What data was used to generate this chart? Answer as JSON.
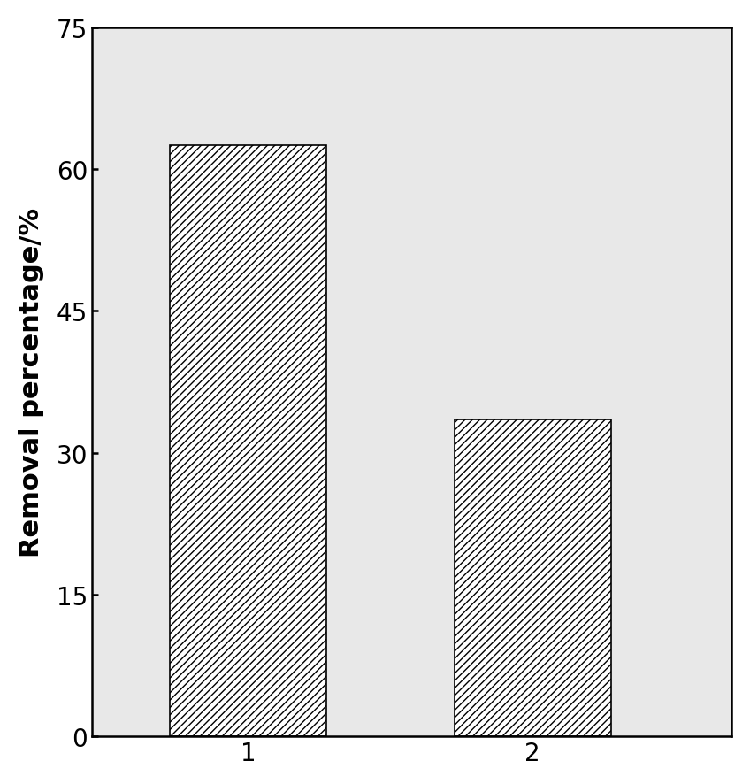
{
  "categories": [
    "1",
    "2"
  ],
  "values": [
    62.5,
    33.5
  ],
  "bar_width": 0.55,
  "hatch_pattern": "////",
  "ylabel": "Removal percentage/%",
  "ylim": [
    0,
    75
  ],
  "yticks": [
    0,
    15,
    30,
    45,
    60,
    75
  ],
  "background_color": "#ffffff",
  "plot_bg_color": "#e8e8e8",
  "ylabel_fontsize": 22,
  "tick_fontsize": 20,
  "bar_edge_color": "#000000",
  "tick_label_color": "#000000",
  "spine_color": "#000000",
  "spine_linewidth": 1.8,
  "tick_linewidth": 1.8,
  "bar_linewidth": 1.2,
  "x_positions": [
    1,
    2
  ],
  "xlim": [
    0.45,
    2.7
  ]
}
